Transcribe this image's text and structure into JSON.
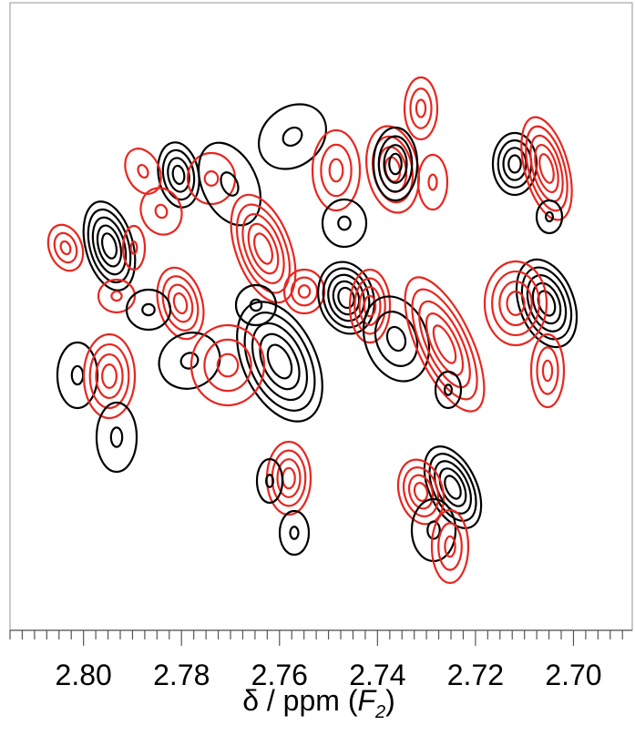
{
  "chart_data": {
    "type": "contour",
    "xlabel": {
      "prefix": "δ / ppm (",
      "var": "F",
      "sub": "2",
      "suffix": ")"
    },
    "x_reversed": true,
    "xlim": [
      2.815,
      2.688
    ],
    "x_ticks": [
      "2.80",
      "2.78",
      "2.76",
      "2.74",
      "2.72",
      "2.70"
    ],
    "x_tick_values": [
      2.8,
      2.78,
      2.76,
      2.74,
      2.72,
      2.7
    ],
    "minor_tick_step": 0.0025,
    "grid": false,
    "colors": {
      "positive": "#000000",
      "negative": "#e8261f"
    },
    "peaks": [
      {
        "ppm": 2.7995,
        "sign": "positive",
        "levels": 5
      },
      {
        "ppm": 2.803,
        "sign": "negative",
        "levels": 3
      },
      {
        "ppm": 2.7965,
        "sign": "negative",
        "levels": 2
      },
      {
        "ppm": 2.801,
        "sign": "negative",
        "levels": 2
      },
      {
        "ppm": 2.784,
        "sign": "positive",
        "levels": 4
      },
      {
        "ppm": 2.7905,
        "sign": "negative",
        "levels": 2
      },
      {
        "ppm": 2.778,
        "sign": "negative",
        "levels": 2
      },
      {
        "ppm": 2.787,
        "sign": "negative",
        "levels": 2
      },
      {
        "ppm": 2.7845,
        "sign": "negative",
        "levels": 4
      },
      {
        "ppm": 2.791,
        "sign": "positive",
        "levels": 2
      },
      {
        "ppm": 2.805,
        "sign": "positive",
        "levels": 2
      },
      {
        "ppm": 2.8005,
        "sign": "negative",
        "levels": 4
      },
      {
        "ppm": 2.7985,
        "sign": "positive",
        "levels": 2
      },
      {
        "ppm": 2.779,
        "sign": "positive",
        "levels": 2
      },
      {
        "ppm": 2.7705,
        "sign": "positive",
        "levels": 2
      },
      {
        "ppm": 2.7665,
        "sign": "negative",
        "levels": 5
      },
      {
        "ppm": 2.7615,
        "sign": "positive",
        "levels": 2
      },
      {
        "ppm": 2.77,
        "sign": "positive",
        "levels": 2
      },
      {
        "ppm": 2.766,
        "sign": "positive",
        "levels": 5
      },
      {
        "ppm": 2.7725,
        "sign": "negative",
        "levels": 3
      },
      {
        "ppm": 2.7605,
        "sign": "negative",
        "levels": 4
      },
      {
        "ppm": 2.7585,
        "sign": "negative",
        "levels": 3
      },
      {
        "ppm": 2.768,
        "sign": "positive",
        "levels": 2
      },
      {
        "ppm": 2.757,
        "sign": "positive",
        "levels": 2
      },
      {
        "ppm": 2.7495,
        "sign": "positive",
        "levels": 5
      },
      {
        "ppm": 2.7545,
        "sign": "negative",
        "levels": 3
      },
      {
        "ppm": 2.744,
        "sign": "negative",
        "levels": 4
      },
      {
        "ppm": 2.7485,
        "sign": "negative",
        "levels": 4
      },
      {
        "ppm": 2.738,
        "sign": "positive",
        "levels": 4
      },
      {
        "ppm": 2.733,
        "sign": "negative",
        "levels": 2
      },
      {
        "ppm": 2.7415,
        "sign": "negative",
        "levels": 3
      },
      {
        "ppm": 2.752,
        "sign": "positive",
        "levels": 2
      },
      {
        "ppm": 2.7345,
        "sign": "positive",
        "levels": 3
      },
      {
        "ppm": 2.7275,
        "sign": "negative",
        "levels": 5
      },
      {
        "ppm": 2.725,
        "sign": "positive",
        "levels": 2
      },
      {
        "ppm": 2.7235,
        "sign": "positive",
        "levels": 5
      },
      {
        "ppm": 2.7295,
        "sign": "negative",
        "levels": 4
      },
      {
        "ppm": 2.731,
        "sign": "positive",
        "levels": 2
      },
      {
        "ppm": 2.7245,
        "sign": "negative",
        "levels": 3
      },
      {
        "ppm": 2.7085,
        "sign": "positive",
        "levels": 4
      },
      {
        "ppm": 2.702,
        "sign": "negative",
        "levels": 5
      },
      {
        "ppm": 2.702,
        "sign": "positive",
        "levels": 2
      },
      {
        "ppm": 2.7015,
        "sign": "positive",
        "levels": 5
      },
      {
        "ppm": 2.7075,
        "sign": "negative",
        "levels": 4
      },
      {
        "ppm": 2.7025,
        "sign": "negative",
        "levels": 3
      }
    ]
  }
}
